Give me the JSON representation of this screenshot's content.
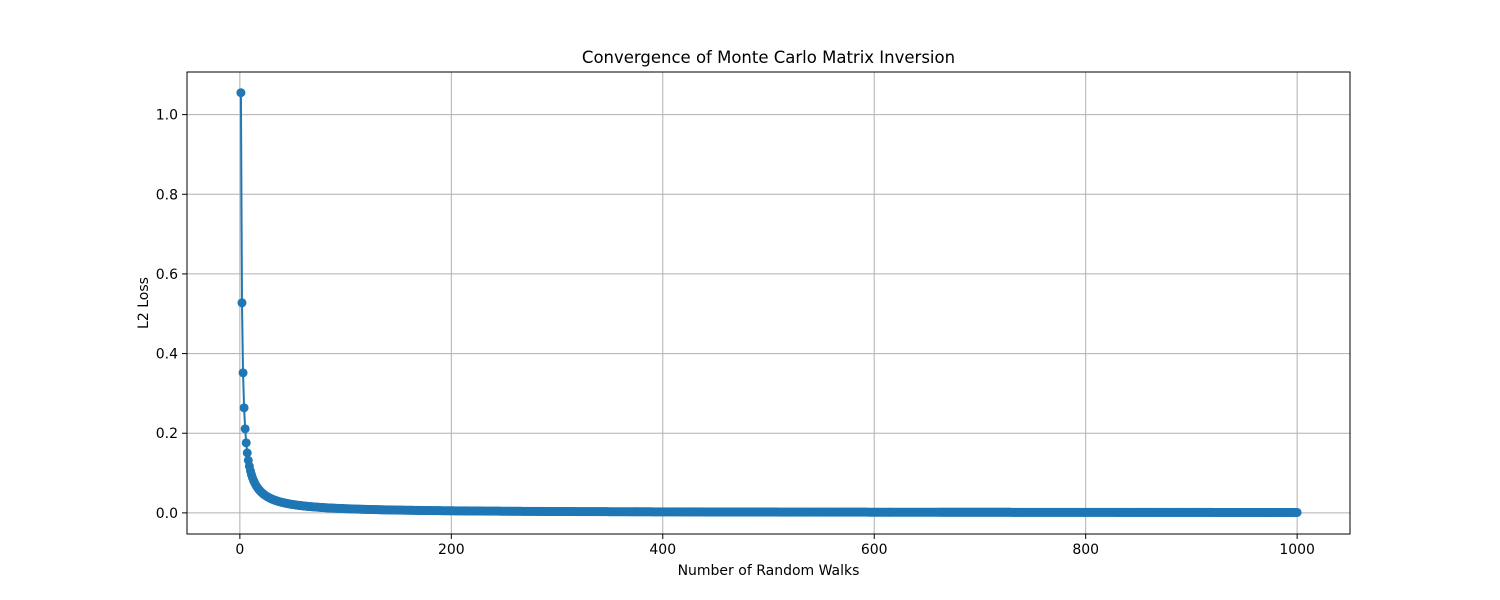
{
  "chart_data": {
    "type": "line",
    "title": "Convergence of Monte Carlo Matrix Inversion",
    "xlabel": "Number of Random Walks",
    "ylabel": "L2 Loss",
    "xlim": [
      -50,
      1050
    ],
    "ylim": [
      -0.053,
      1.107
    ],
    "x_ticks": [
      0,
      200,
      400,
      600,
      800,
      1000
    ],
    "y_ticks": [
      0.0,
      0.2,
      0.4,
      0.6,
      0.8,
      1.0
    ],
    "x_tick_labels": [
      "0",
      "200",
      "400",
      "600",
      "800",
      "1000"
    ],
    "y_tick_labels": [
      "0.0",
      "0.2",
      "0.4",
      "0.6",
      "0.8",
      "1.0"
    ],
    "grid": true,
    "marker": "circle",
    "series": [
      {
        "color": "#1f77b4",
        "x_start": 1,
        "x_end": 1000,
        "x_step": 1,
        "model": "y = 1.055 / x",
        "highlighted_points": [
          {
            "x": 1,
            "y": 1.055
          },
          {
            "x": 2,
            "y": 0.528
          },
          {
            "x": 3,
            "y": 0.352
          },
          {
            "x": 4,
            "y": 0.264
          },
          {
            "x": 5,
            "y": 0.211
          },
          {
            "x": 6,
            "y": 0.176
          },
          {
            "x": 7,
            "y": 0.151
          },
          {
            "x": 8,
            "y": 0.132
          },
          {
            "x": 10,
            "y": 0.106
          },
          {
            "x": 20,
            "y": 0.053
          },
          {
            "x": 50,
            "y": 0.021
          },
          {
            "x": 100,
            "y": 0.011
          },
          {
            "x": 200,
            "y": 0.005
          },
          {
            "x": 400,
            "y": 0.003
          },
          {
            "x": 600,
            "y": 0.002
          },
          {
            "x": 800,
            "y": 0.001
          },
          {
            "x": 1000,
            "y": 0.001
          }
        ]
      }
    ]
  },
  "colors": {
    "series_line": "#1f77b4",
    "grid": "#b0b0b0",
    "axes": "#000000",
    "background": "#ffffff"
  }
}
